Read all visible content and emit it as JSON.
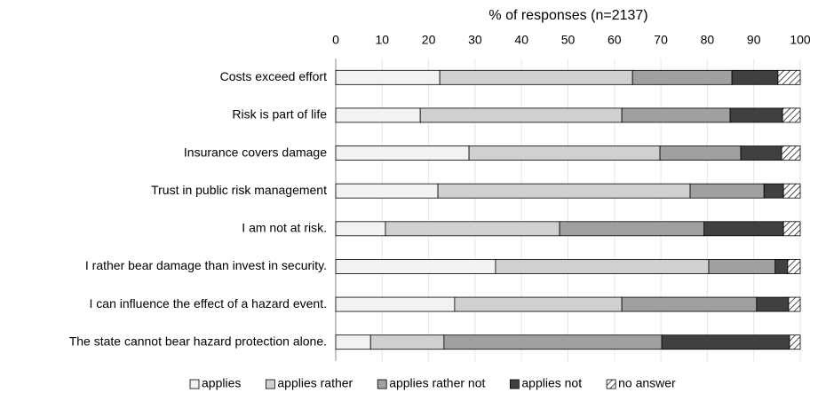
{
  "chart_data": {
    "type": "stacked_barh",
    "xlabel": "% of responses (n=2137)",
    "categories": [
      "Costs exceed effort",
      "Risk is part of life",
      "Insurance covers damage",
      "Trust in public risk management",
      "I am not at risk.",
      "I rather bear damage than invest in security.",
      "I can influence the effect of a hazard event.",
      "The state cannot bear hazard protection alone."
    ],
    "series": [
      {
        "name": "applies",
        "color": "#f2f2f2",
        "values": [
          22.4,
          18.2,
          28.7,
          22.0,
          10.7,
          34.4,
          25.6,
          7.5
        ]
      },
      {
        "name": "applies rather",
        "color": "#d0d0d0",
        "values": [
          41.5,
          43.4,
          41.1,
          54.3,
          37.5,
          45.9,
          36.0,
          15.8
        ]
      },
      {
        "name": "applies rather not",
        "color": "#a0a0a0",
        "values": [
          21.4,
          23.3,
          17.4,
          15.9,
          31.1,
          14.3,
          29.0,
          46.9
        ]
      },
      {
        "name": "applies not",
        "color": "#404040",
        "values": [
          9.9,
          11.3,
          8.8,
          4.2,
          17.1,
          2.7,
          6.9,
          27.5
        ]
      },
      {
        "name": "no answer",
        "color": "#ffffff",
        "pattern": "hatch",
        "values": [
          4.8,
          3.8,
          4.0,
          3.6,
          3.6,
          2.7,
          2.5,
          2.3
        ]
      }
    ],
    "xlim": [
      0,
      100
    ],
    "xticks": [
      0,
      10,
      20,
      30,
      40,
      50,
      60,
      70,
      80,
      90,
      100
    ],
    "grid": true,
    "legend": "bottom"
  }
}
